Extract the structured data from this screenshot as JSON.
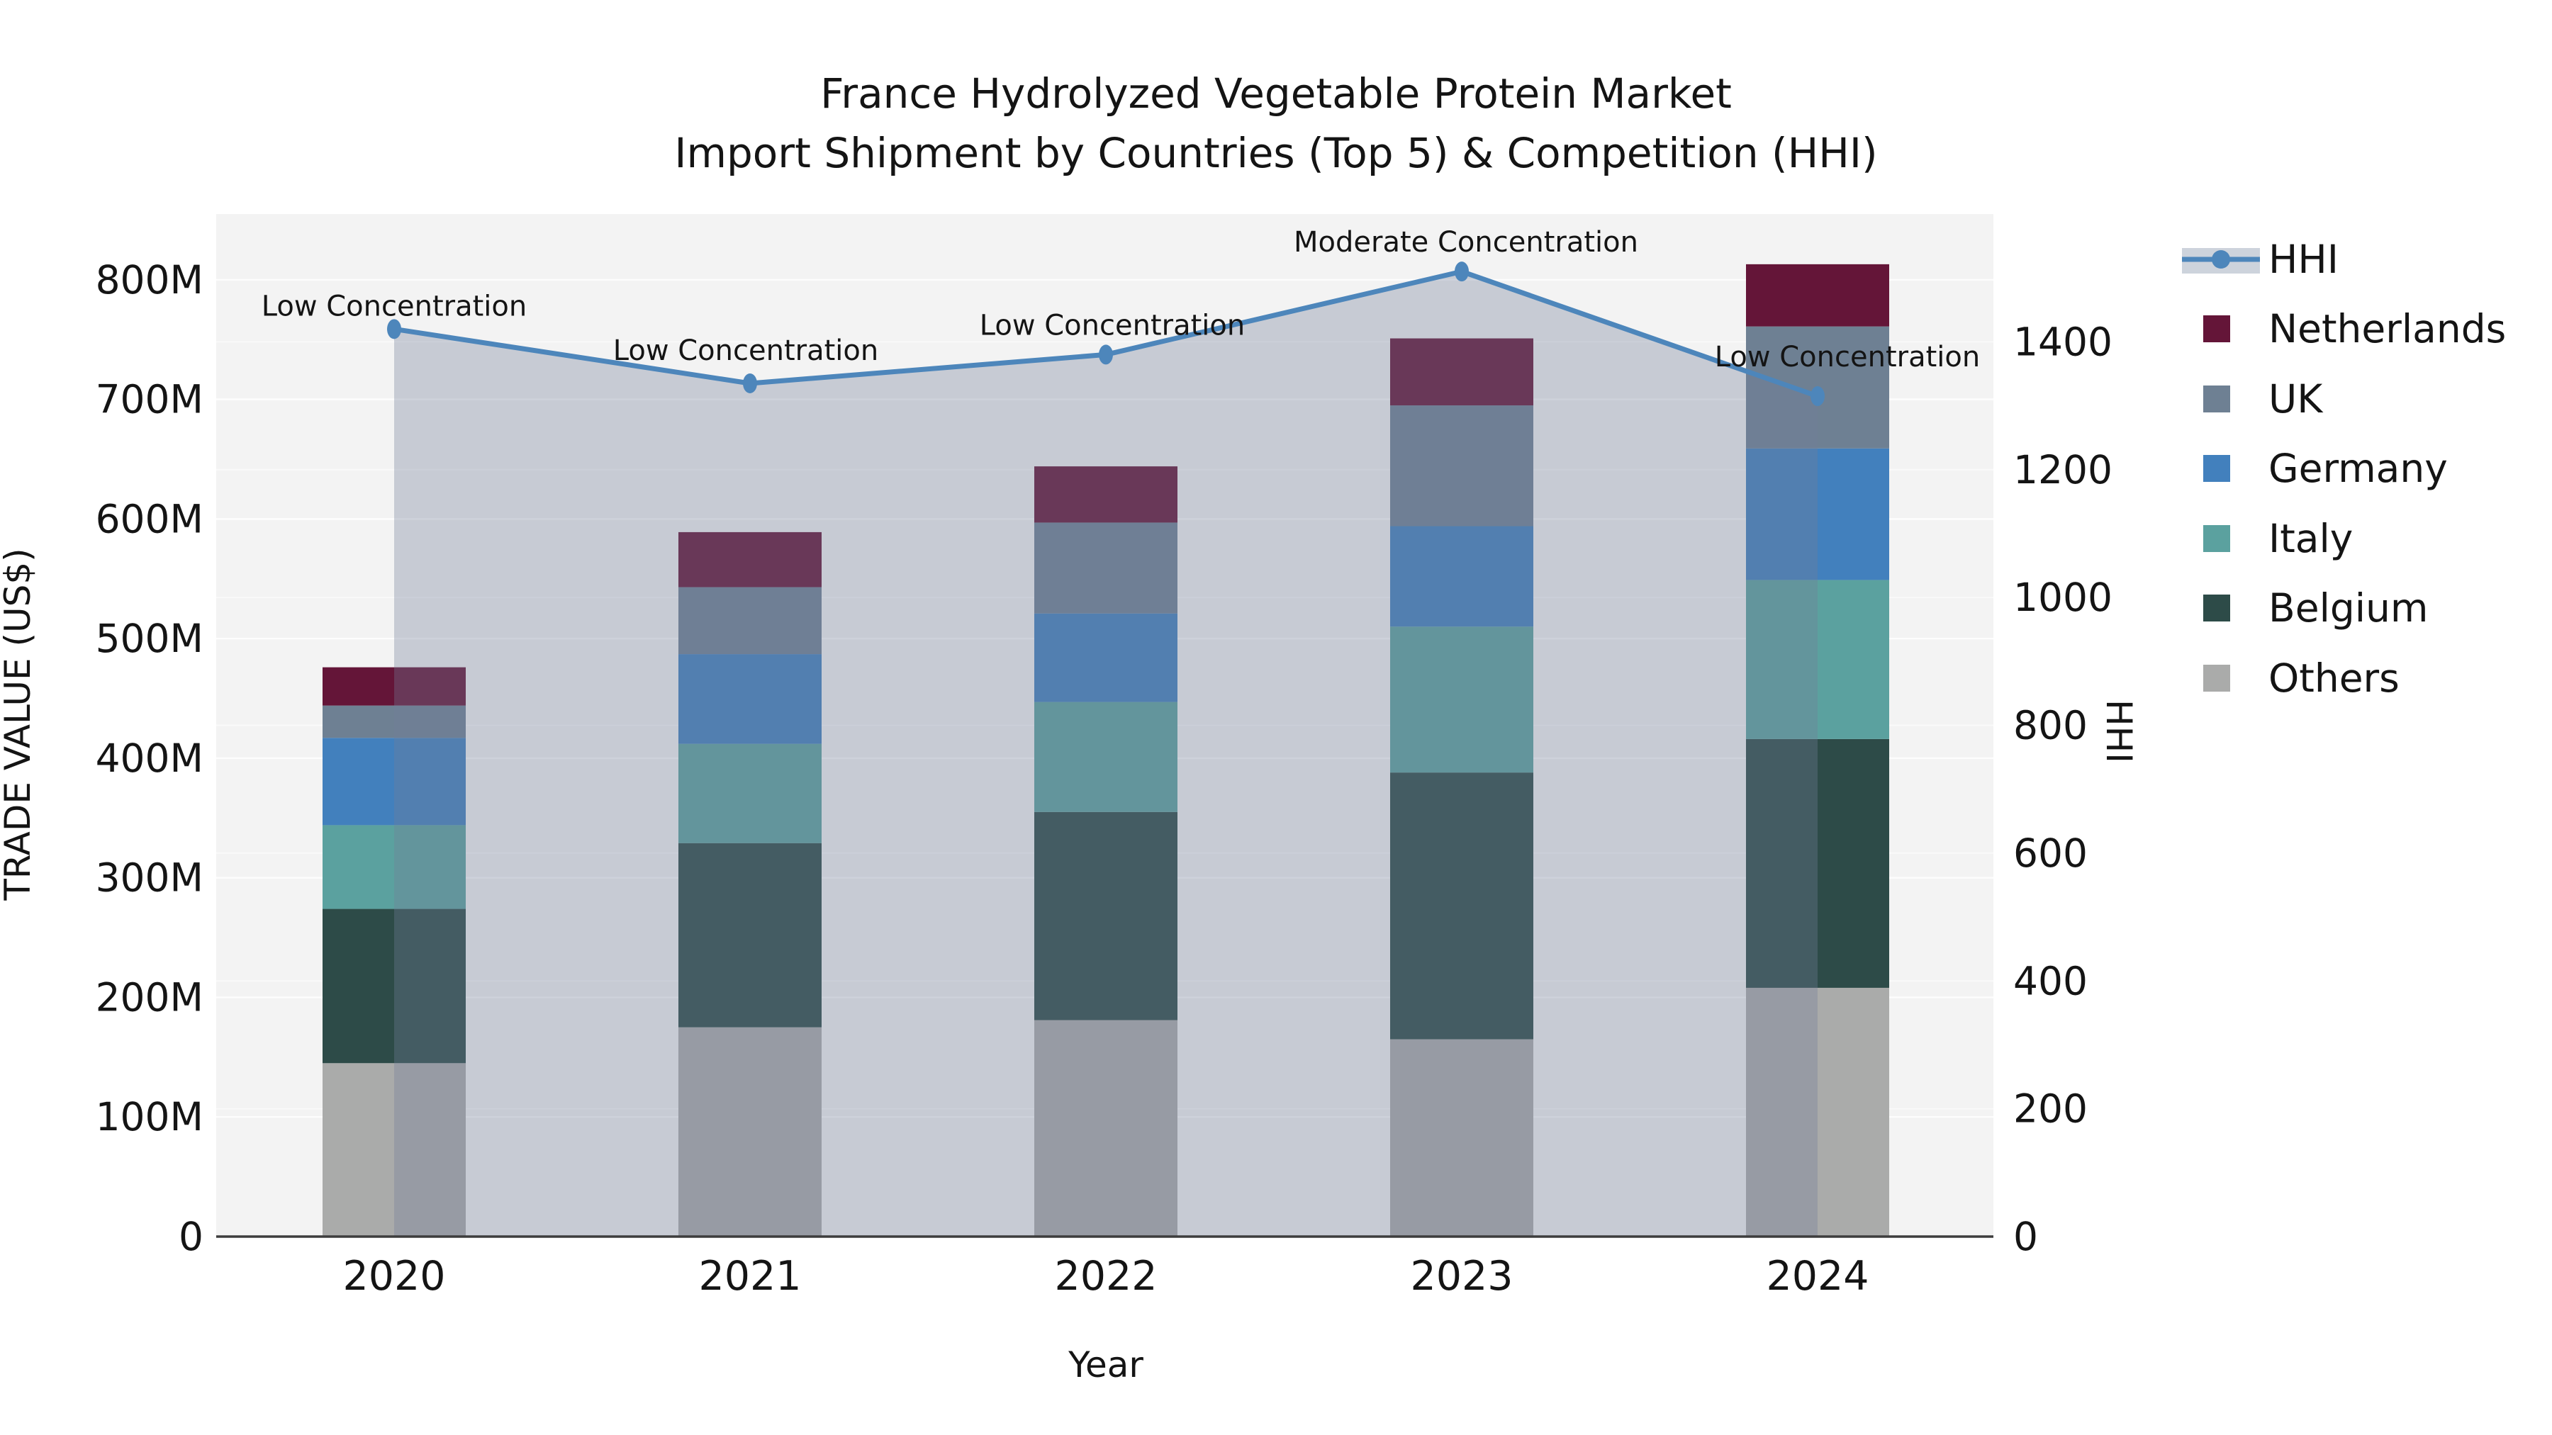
{
  "title": {
    "line1": "France Hydrolyzed Vegetable Protein Market",
    "line2": "Import Shipment by Countries (Top 5) & Competition (HHI)"
  },
  "chart_data": {
    "type": "bar",
    "subtype": "stacked-bar-with-line-overlay",
    "categories": [
      "2020",
      "2021",
      "2022",
      "2023",
      "2024"
    ],
    "value_unit": "millions USD",
    "stacked_series": [
      {
        "name": "Others",
        "color": "#aaabaa",
        "values": [
          145,
          175,
          181,
          165,
          208
        ]
      },
      {
        "name": "Belgium",
        "color": "#2d4b48",
        "values": [
          129,
          154,
          174,
          223,
          208
        ]
      },
      {
        "name": "Italy",
        "color": "#5ba19f",
        "values": [
          70,
          83,
          92,
          122,
          133
        ]
      },
      {
        "name": "Germany",
        "color": "#4280bd",
        "values": [
          73,
          75,
          74,
          84,
          110
        ]
      },
      {
        "name": "UK",
        "color": "#6e8093",
        "values": [
          27,
          56,
          76,
          101,
          102
        ]
      },
      {
        "name": "Netherlands",
        "color": "#641538",
        "values": [
          32,
          46,
          47,
          56,
          52
        ]
      }
    ],
    "bar_totals": [
      476,
      589,
      644,
      751,
      813
    ],
    "line_series": {
      "name": "HHI",
      "color": "#4d86bb",
      "area_fill": "rgba(113,127,153,0.34)",
      "axis": "right",
      "values": [
        1420,
        1335,
        1380,
        1510,
        1315
      ]
    },
    "annotations": [
      {
        "year": "2020",
        "text": "Low Concentration"
      },
      {
        "year": "2021",
        "text": "Low Concentration"
      },
      {
        "year": "2022",
        "text": "Low Concentration"
      },
      {
        "year": "2023",
        "text": "Moderate Concentration"
      },
      {
        "year": "2024",
        "text": "Low Concentration"
      }
    ],
    "left_axis": {
      "label": "TRADE VALUE (US$)",
      "ticks": [
        "0",
        "100M",
        "200M",
        "300M",
        "400M",
        "500M",
        "600M",
        "700M",
        "800M"
      ],
      "tick_values": [
        0,
        100,
        200,
        300,
        400,
        500,
        600,
        700,
        800
      ],
      "max": 855
    },
    "right_axis": {
      "label": "HHI",
      "ticks": [
        "0",
        "200",
        "400",
        "600",
        "800",
        "1000",
        "1200",
        "1400"
      ],
      "tick_values": [
        0,
        200,
        400,
        600,
        800,
        1000,
        1200,
        1400
      ],
      "max": 1600
    },
    "x_axis": {
      "label": "Year"
    },
    "legend": [
      {
        "label": "HHI",
        "type": "line",
        "series_index": -1
      },
      {
        "label": "Netherlands",
        "type": "swatch",
        "series_index": 5
      },
      {
        "label": "UK",
        "type": "swatch",
        "series_index": 4
      },
      {
        "label": "Germany",
        "type": "swatch",
        "series_index": 3
      },
      {
        "label": "Italy",
        "type": "swatch",
        "series_index": 2
      },
      {
        "label": "Belgium",
        "type": "swatch",
        "series_index": 1
      },
      {
        "label": "Others",
        "type": "swatch",
        "series_index": 0
      }
    ],
    "colors": {
      "plot_background": "#f3f3f3",
      "gridline": "#ffffff",
      "axis_line": "#3d3d3d",
      "text": "#141414",
      "legend_area_band": "#cdd3dc"
    }
  }
}
